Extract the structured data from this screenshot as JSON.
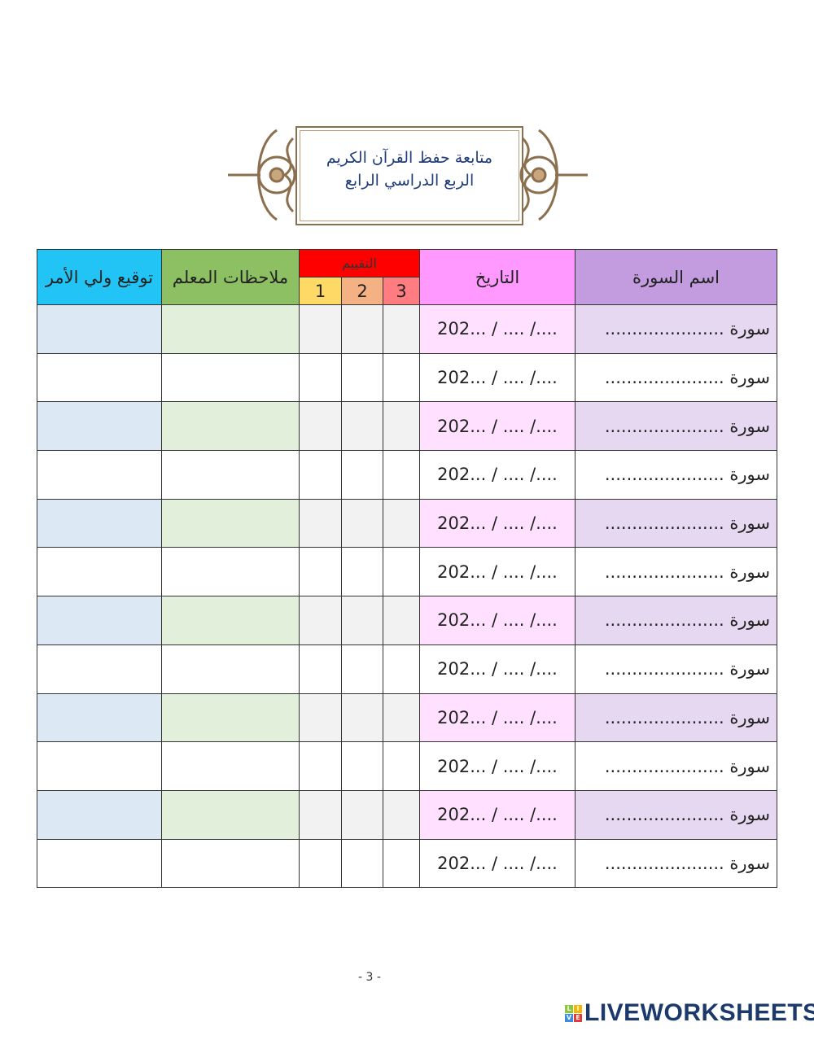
{
  "banner": {
    "line1": "متابعة حفظ القرآن الكريم",
    "line2": "الربع الدراسي الرابع"
  },
  "table": {
    "headers": {
      "signature": "توقيع ولي الأمر",
      "notes": "ملاحظات المعلم",
      "rating": "التقييم",
      "r1": "1",
      "r2": "2",
      "r3": "3",
      "date": "التاريخ",
      "sura": "اسم السورة"
    },
    "header_colors": {
      "signature": "#21c4f5",
      "notes": "#8cc063",
      "rating": "#ff0000",
      "r1": "#ffd966",
      "r2": "#f4b183",
      "r3": "#ff7c80",
      "date": "#ff99ff",
      "sura": "#c39bdf"
    },
    "date_placeholder": "202... / .... /....",
    "sura_placeholder": "سورة ......................",
    "row_count": 12
  },
  "footer": {
    "page_number": "- 3 -",
    "logo": "LIVEWORKSHEETS"
  }
}
